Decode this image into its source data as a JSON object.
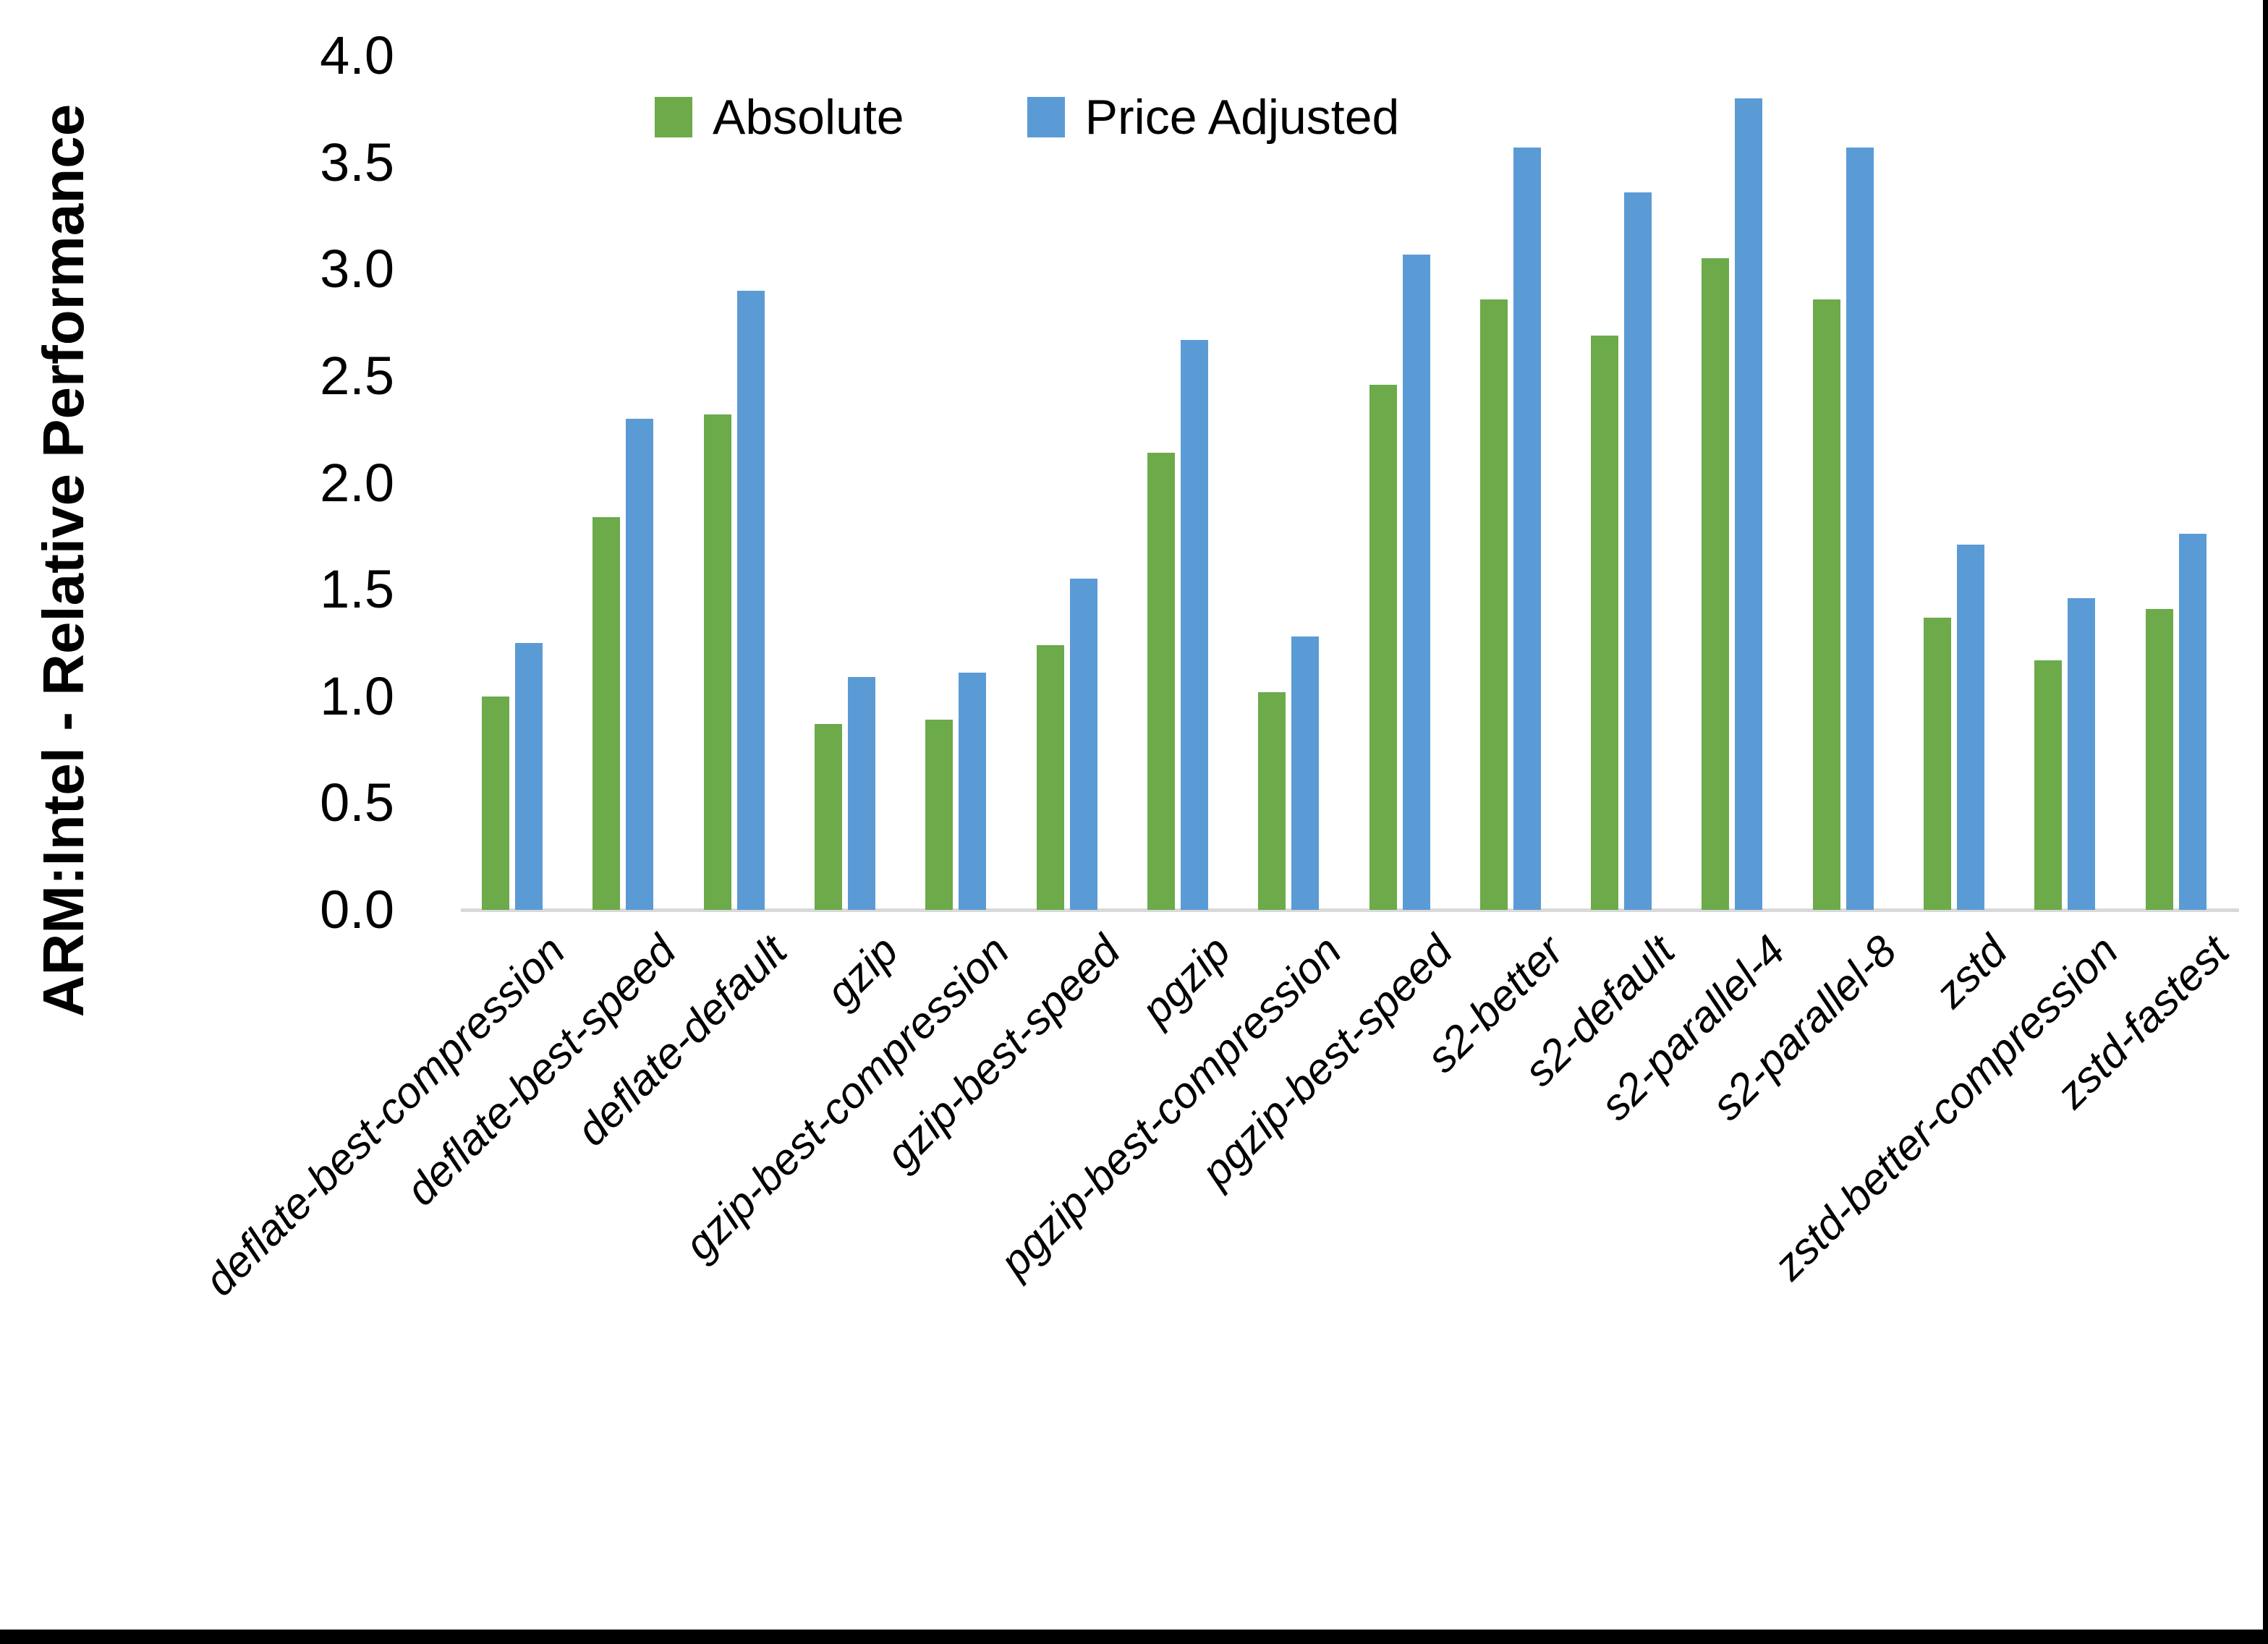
{
  "chart_data": {
    "type": "bar",
    "title": "",
    "ylabel": "ARM:Intel - Relative Performance",
    "xlabel": "",
    "ylim": [
      0.0,
      4.0
    ],
    "ytick_labels": [
      "0.0",
      "0.5",
      "1.0",
      "1.5",
      "2.0",
      "2.5",
      "3.0",
      "3.5",
      "4.0"
    ],
    "grid": false,
    "legend_position": "top-center",
    "axis_line_color": "#d9d9d9",
    "categories": [
      "deflate-best-compression",
      "deflate-best-speed",
      "deflate-default",
      "gzip",
      "gzip-best-compression",
      "gzip-best-speed",
      "pgzip",
      "pgzip-best-compression",
      "pgzip-best-speed",
      "s2-better",
      "s2-default",
      "s2-parallel-4",
      "s2-parallel-8",
      "zstd",
      "zstd-better-compression",
      "zstd-fastest"
    ],
    "series": [
      {
        "name": "Absolute",
        "color": "#6caa4a",
        "values": [
          1.0,
          1.84,
          2.32,
          0.87,
          0.89,
          1.24,
          2.14,
          1.02,
          2.46,
          2.86,
          2.69,
          3.05,
          2.86,
          1.37,
          1.17,
          1.41
        ]
      },
      {
        "name": "Price Adjusted",
        "color": "#5b9bd5",
        "values": [
          1.25,
          2.3,
          2.9,
          1.09,
          1.11,
          1.55,
          2.67,
          1.28,
          3.07,
          3.57,
          3.36,
          3.8,
          3.57,
          1.71,
          1.46,
          1.76
        ]
      }
    ],
    "frame": {
      "bottom_bar_color": "#000000",
      "right_bar_color": "#000000"
    }
  }
}
